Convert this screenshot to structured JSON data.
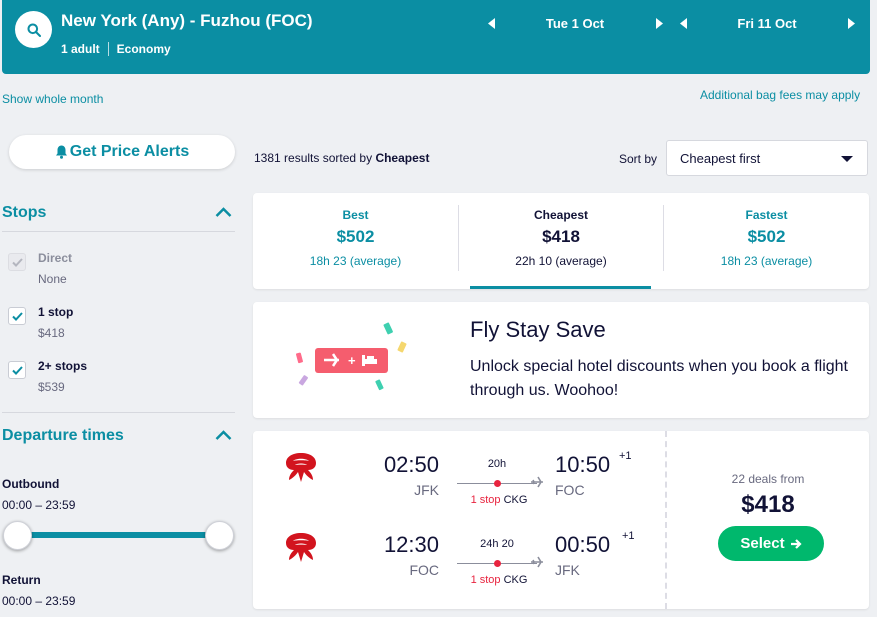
{
  "header": {
    "route": "New York (Any) - Fuzhou (FOC)",
    "passengers": "1 adult",
    "cabin": "Economy",
    "outbound_date": "Tue 1 Oct",
    "return_date": "Fri 11 Oct"
  },
  "links": {
    "show_month": "Show whole month",
    "bag_fees": "Additional bag fees may apply"
  },
  "sidebar": {
    "price_alerts": "Get Price Alerts",
    "stops_title": "Stops",
    "stops": [
      {
        "label": "Direct",
        "price": "None",
        "checked": true,
        "disabled": true
      },
      {
        "label": "1 stop",
        "price": "$418",
        "checked": true,
        "disabled": false
      },
      {
        "label": "2+ stops",
        "price": "$539",
        "checked": true,
        "disabled": false
      }
    ],
    "departure_title": "Departure times",
    "outbound_label": "Outbound",
    "outbound_range": "00:00 – 23:59",
    "return_label": "Return",
    "return_range": "00:00 – 23:59"
  },
  "results": {
    "count": "1381",
    "sorted_text": "results sorted by",
    "sorted_by": "Cheapest",
    "sort_label": "Sort by",
    "sort_value": "Cheapest first"
  },
  "tabs": [
    {
      "label": "Best",
      "price": "$502",
      "duration": "18h 23 (average)"
    },
    {
      "label": "Cheapest",
      "price": "$418",
      "duration": "22h 10 (average)"
    },
    {
      "label": "Fastest",
      "price": "$502",
      "duration": "18h 23 (average)"
    }
  ],
  "promo": {
    "title": "Fly Stay Save",
    "text": "Unlock special hotel discounts when you book a flight through us. Woohoo!"
  },
  "flight": {
    "legs": [
      {
        "dep_time": "02:50",
        "dep_airport": "JFK",
        "duration": "20h",
        "stops": "1 stop",
        "via": "CKG",
        "arr_time": "10:50",
        "day_offset": "+1",
        "arr_airport": "FOC"
      },
      {
        "dep_time": "12:30",
        "dep_airport": "FOC",
        "duration": "24h 20",
        "stops": "1 stop",
        "via": "CKG",
        "arr_time": "00:50",
        "day_offset": "+1",
        "arr_airport": "JFK"
      }
    ],
    "deals": "22 deals from",
    "price": "$418",
    "select_label": "Select"
  },
  "colors": {
    "brand_teal": "#0b8ea3",
    "select_green": "#00b86d",
    "stop_red": "#e8243f"
  }
}
